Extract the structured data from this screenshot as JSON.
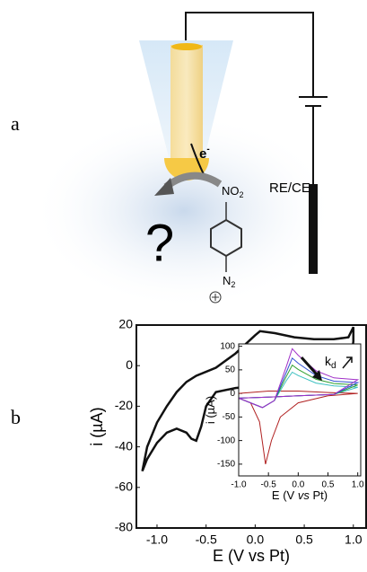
{
  "panel_a": {
    "label": "a",
    "electron": "e",
    "electron_charge": "-",
    "question": "?",
    "nitro": "NO",
    "nitro_sub": "2",
    "diazo": "N",
    "diazo_sub": "2",
    "electrode_label": "RE/CE"
  },
  "panel_b": {
    "label": "b"
  },
  "chart_data": [
    {
      "type": "line",
      "xlabel": "E (V vs Pt)",
      "ylabel": "i (µA)",
      "xlim": [
        -1.21,
        1.13
      ],
      "ylim": [
        -80,
        20
      ],
      "xticks": [
        {
          "value": -1.0,
          "label": "-1.0"
        },
        -0.5,
        {
          "value": 0.0,
          "label": "0.0"
        },
        0.5,
        {
          "value": 1.0,
          "label": "1.0"
        }
      ],
      "yticks": [
        20,
        0,
        -20,
        -40,
        -60,
        -80
      ],
      "series": [
        {
          "color": "#111111",
          "x": [
            -1.15,
            -1.1,
            -1.0,
            -0.9,
            -0.8,
            -0.7,
            -0.6,
            -0.4,
            -0.2,
            0.0,
            0.05,
            0.2,
            0.4,
            0.6,
            0.8,
            0.95,
            1.0,
            1.0,
            0.95,
            0.8,
            0.6,
            0.4,
            0.2,
            0.0,
            -0.2,
            -0.4,
            -0.5,
            -0.55,
            -0.6,
            -0.65,
            -0.7,
            -0.8,
            -0.9,
            -1.0,
            -1.1,
            -1.15
          ],
          "values": [
            -52,
            -40,
            -28,
            -20,
            -13,
            -8,
            -5,
            -1,
            6,
            15,
            17,
            16,
            14,
            13,
            13,
            14,
            19,
            12,
            -7,
            -8,
            -9,
            -9,
            -10,
            -10,
            -11,
            -13,
            -20,
            -30,
            -37,
            -36,
            -33,
            -31,
            -33,
            -38,
            -46,
            -52
          ]
        }
      ]
    },
    {
      "type": "line",
      "xlabel_parts": [
        "E (V ",
        "vs",
        " Pt)"
      ],
      "ylabel": "i (µA)",
      "xlim": [
        -1.0,
        1.05
      ],
      "ylim": [
        -175,
        105
      ],
      "xticks": [
        {
          "value": -1.0,
          "label": "-1.0"
        },
        -0.5,
        {
          "value": 0.0,
          "label": "0.0"
        },
        0.5,
        {
          "value": 1.0,
          "label": "1.0"
        }
      ],
      "yticks": [
        100,
        50,
        0,
        -50,
        -100,
        -150
      ],
      "annotation": {
        "text": "k",
        "subscript": "d"
      },
      "series": [
        {
          "color": "#b02020",
          "x": [
            -1.0,
            -0.8,
            -0.65,
            -0.55,
            -0.45,
            -0.3,
            0.0,
            0.5,
            1.0,
            0.5,
            0.0,
            -0.5,
            -1.0
          ],
          "values": [
            -10,
            -20,
            -60,
            -150,
            -100,
            -50,
            -20,
            -5,
            0,
            2,
            5,
            5,
            0
          ]
        },
        {
          "color": "#3cc0c0",
          "x": [
            -1.0,
            -0.6,
            -0.4,
            -0.2,
            -0.1,
            0.0,
            0.3,
            0.6,
            1.0,
            0.6,
            0.0,
            -0.5,
            -1.0
          ],
          "values": [
            -10,
            -30,
            -15,
            27,
            45,
            38,
            22,
            16,
            13,
            -2,
            -5,
            -8,
            -10
          ]
        },
        {
          "color": "#30a030",
          "x": [
            -1.0,
            -0.6,
            -0.4,
            -0.2,
            -0.1,
            0.0,
            0.3,
            0.6,
            1.0,
            0.6,
            0.0,
            -0.5,
            -1.0
          ],
          "values": [
            -10,
            -30,
            -15,
            36,
            60,
            51,
            30,
            21,
            18,
            -2,
            -5,
            -8,
            -10
          ]
        },
        {
          "color": "#3050d0",
          "x": [
            -1.0,
            -0.6,
            -0.4,
            -0.2,
            -0.1,
            0.0,
            0.3,
            0.6,
            1.0,
            0.6,
            0.0,
            -0.5,
            -1.0
          ],
          "values": [
            -10,
            -30,
            -15,
            45,
            75,
            64,
            38,
            26,
            23,
            -2,
            -5,
            -8,
            -10
          ]
        },
        {
          "color": "#a030c8",
          "x": [
            -1.0,
            -0.6,
            -0.4,
            -0.2,
            -0.1,
            0.0,
            0.3,
            0.6,
            1.0,
            0.6,
            0.0,
            -0.5,
            -1.0
          ],
          "values": [
            -10,
            -30,
            -15,
            57,
            95,
            81,
            48,
            33,
            29,
            -2,
            -5,
            -8,
            -10
          ]
        }
      ]
    }
  ]
}
